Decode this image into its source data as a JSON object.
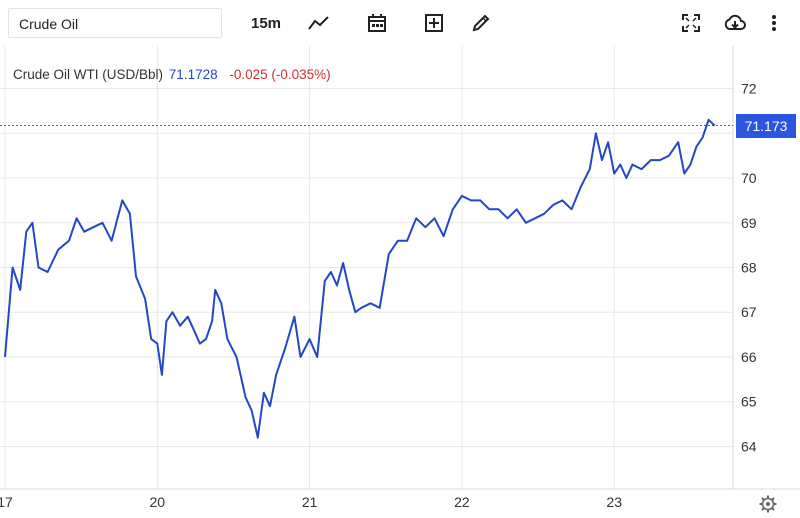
{
  "toolbar": {
    "symbol": "Crude Oil",
    "interval": "15m",
    "icons": [
      "line-chart-icon",
      "calendar-icon",
      "add-indicator-icon",
      "draw-pencil-icon",
      "fullscreen-icon",
      "cloud-download-icon",
      "more-vertical-icon"
    ]
  },
  "legend": {
    "instrument": "Crude Oil WTI (USD/Bbl)",
    "last": "71.1728",
    "change": "-0.025 (-0.035%)"
  },
  "price_label": "71.173",
  "colors": {
    "line": "#2447c8",
    "price_badge": "#2a56e0",
    "negative": "#d23030",
    "grid": "#e8e8e8"
  },
  "chart_data": {
    "type": "line",
    "title": "",
    "series": [
      {
        "name": "Crude Oil WTI (USD/Bbl)",
        "points": [
          [
            0,
            66.0
          ],
          [
            0.05,
            68.0
          ],
          [
            0.1,
            67.5
          ],
          [
            0.14,
            68.8
          ],
          [
            0.18,
            69.0
          ],
          [
            0.22,
            68.0
          ],
          [
            0.28,
            67.9
          ],
          [
            0.35,
            68.4
          ],
          [
            0.42,
            68.6
          ],
          [
            0.47,
            69.1
          ],
          [
            0.52,
            68.8
          ],
          [
            0.58,
            68.9
          ],
          [
            0.64,
            69.0
          ],
          [
            0.7,
            68.6
          ],
          [
            0.77,
            69.5
          ],
          [
            0.82,
            69.2
          ],
          [
            0.86,
            67.8
          ],
          [
            0.92,
            67.3
          ],
          [
            0.96,
            66.4
          ],
          [
            1.0,
            66.3
          ],
          [
            1.03,
            65.6
          ],
          [
            1.06,
            66.8
          ],
          [
            1.1,
            67.0
          ],
          [
            1.15,
            66.7
          ],
          [
            1.2,
            66.9
          ],
          [
            1.24,
            66.6
          ],
          [
            1.28,
            66.3
          ],
          [
            1.32,
            66.4
          ],
          [
            1.36,
            66.8
          ],
          [
            1.38,
            67.5
          ],
          [
            1.42,
            67.2
          ],
          [
            1.46,
            66.4
          ],
          [
            1.52,
            66.0
          ],
          [
            1.58,
            65.1
          ],
          [
            1.62,
            64.8
          ],
          [
            1.66,
            64.2
          ],
          [
            1.7,
            65.2
          ],
          [
            1.74,
            64.9
          ],
          [
            1.78,
            65.6
          ],
          [
            1.84,
            66.2
          ],
          [
            1.9,
            66.9
          ],
          [
            1.94,
            66.0
          ],
          [
            2.0,
            66.4
          ],
          [
            2.05,
            66.0
          ],
          [
            2.1,
            67.7
          ],
          [
            2.14,
            67.9
          ],
          [
            2.18,
            67.6
          ],
          [
            2.22,
            68.1
          ],
          [
            2.26,
            67.5
          ],
          [
            2.3,
            67.0
          ],
          [
            2.34,
            67.1
          ],
          [
            2.4,
            67.2
          ],
          [
            2.46,
            67.1
          ],
          [
            2.52,
            68.3
          ],
          [
            2.58,
            68.6
          ],
          [
            2.64,
            68.6
          ],
          [
            2.7,
            69.1
          ],
          [
            2.76,
            68.9
          ],
          [
            2.82,
            69.1
          ],
          [
            2.88,
            68.7
          ],
          [
            2.94,
            69.3
          ],
          [
            3.0,
            69.6
          ],
          [
            3.06,
            69.5
          ],
          [
            3.12,
            69.5
          ],
          [
            3.18,
            69.3
          ],
          [
            3.24,
            69.3
          ],
          [
            3.3,
            69.1
          ],
          [
            3.36,
            69.3
          ],
          [
            3.42,
            69.0
          ],
          [
            3.48,
            69.1
          ],
          [
            3.54,
            69.2
          ],
          [
            3.6,
            69.4
          ],
          [
            3.66,
            69.5
          ],
          [
            3.72,
            69.3
          ],
          [
            3.78,
            69.8
          ],
          [
            3.84,
            70.2
          ],
          [
            3.88,
            71.0
          ],
          [
            3.92,
            70.4
          ],
          [
            3.96,
            70.8
          ],
          [
            4.0,
            70.1
          ],
          [
            4.04,
            70.3
          ],
          [
            4.08,
            70.0
          ],
          [
            4.12,
            70.3
          ],
          [
            4.18,
            70.2
          ],
          [
            4.24,
            70.4
          ],
          [
            4.3,
            70.4
          ],
          [
            4.36,
            70.5
          ],
          [
            4.42,
            70.8
          ],
          [
            4.46,
            70.1
          ],
          [
            4.5,
            70.3
          ],
          [
            4.54,
            70.7
          ],
          [
            4.58,
            70.9
          ],
          [
            4.62,
            71.3
          ],
          [
            4.66,
            71.17
          ]
        ]
      }
    ],
    "x_ticks": [
      {
        "label": "17",
        "x": 0
      },
      {
        "label": "20",
        "x": 1
      },
      {
        "label": "21",
        "x": 2
      },
      {
        "label": "22",
        "x": 3
      },
      {
        "label": "23",
        "x": 4
      }
    ],
    "y_ticks": [
      64,
      65,
      66,
      67,
      68,
      69,
      70,
      71,
      72
    ],
    "y_tick_labels": [
      "64",
      "65",
      "66",
      "67",
      "68",
      "69",
      "70",
      "",
      "72"
    ],
    "xlim": [
      0,
      4.78
    ],
    "ylim": [
      63.05,
      72.95
    ],
    "last_price": 71.173,
    "grid": true
  }
}
